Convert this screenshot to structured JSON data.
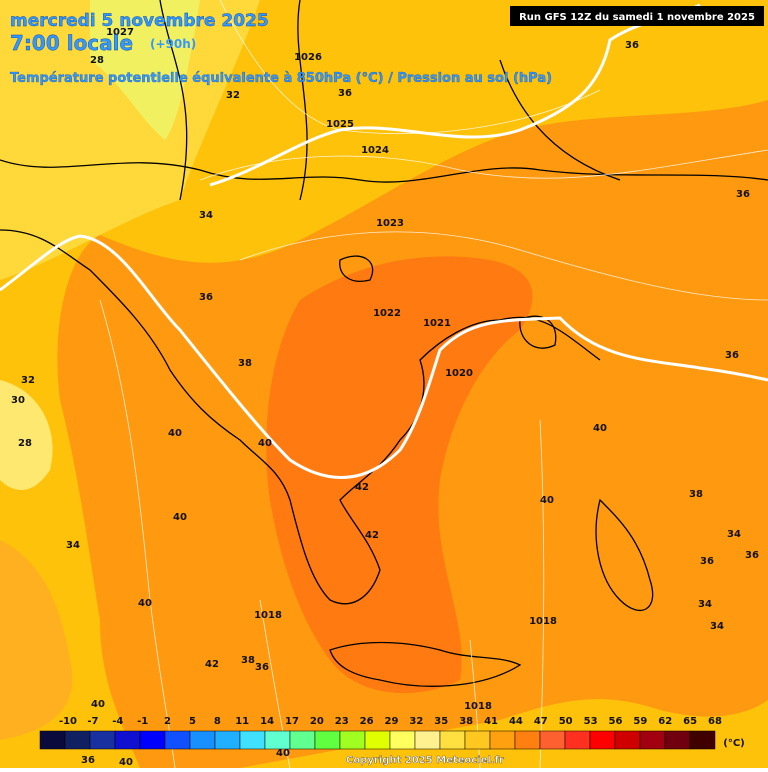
{
  "header": {
    "date": "mercredi 5 novembre 2025",
    "time": "7:00 locale",
    "lead": "(+90h)",
    "subtitle": "Température potentielle équivalente à 850hPa (°C) / Pression au sol (hPa)",
    "run": "Run GFS 12Z du samedi 1 novembre 2025"
  },
  "legend": {
    "labels": [
      "-10",
      "-7",
      "-4",
      "-1",
      "2",
      "5",
      "8",
      "11",
      "14",
      "17",
      "20",
      "23",
      "26",
      "29",
      "32",
      "35",
      "38",
      "41",
      "44",
      "47",
      "50",
      "53",
      "56",
      "59",
      "62",
      "65",
      "68"
    ],
    "unit": "(°C)"
  },
  "copyright": "Copyright 2025 Meteociel.fr",
  "map_labels": [
    "1027",
    "28",
    "1026",
    "1025",
    "1024",
    "1023",
    "1022",
    "1021",
    "1020",
    "1018",
    "1018",
    "1018",
    "36",
    "36",
    "32",
    "34",
    "36",
    "38",
    "40",
    "40",
    "42",
    "40",
    "42",
    "34",
    "40",
    "42",
    "38",
    "36",
    "36",
    "36",
    "40",
    "40",
    "38",
    "34",
    "36",
    "36",
    "34",
    "34",
    "32",
    "30",
    "28",
    "40",
    "36",
    "40",
    "40"
  ]
}
